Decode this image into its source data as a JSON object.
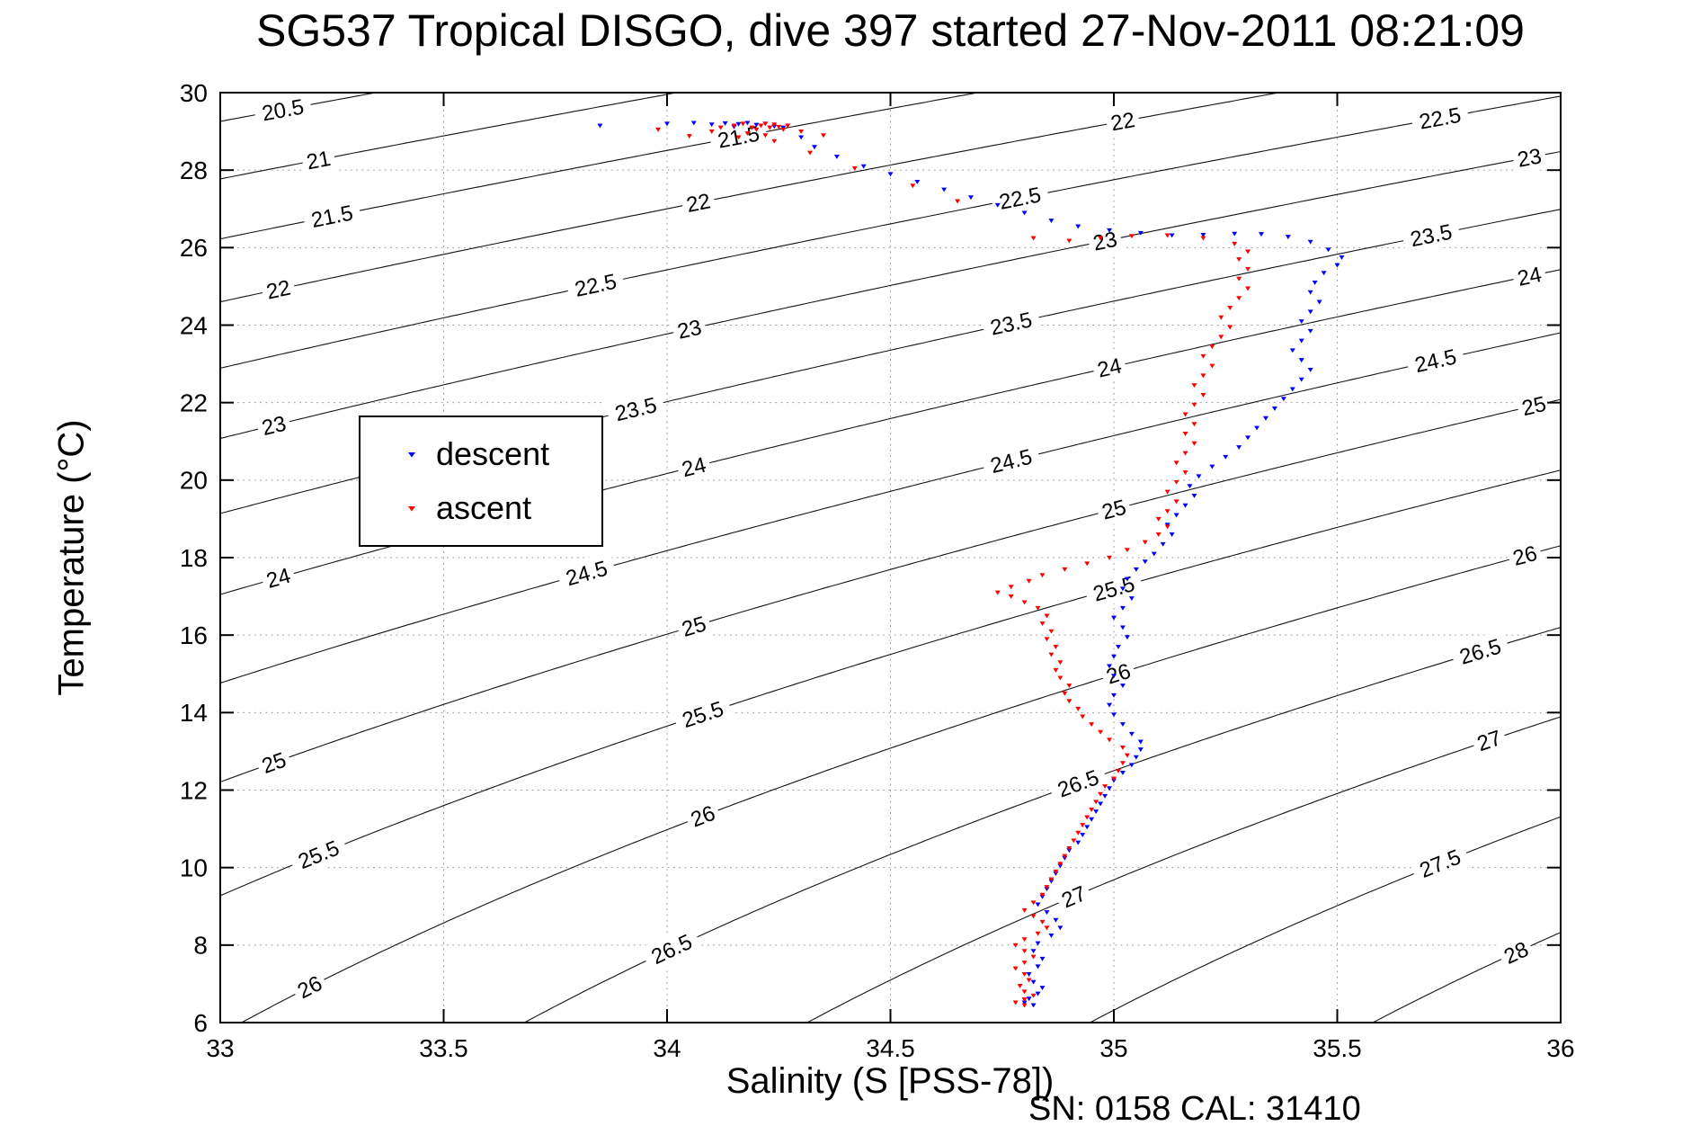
{
  "chart_data": {
    "type": "scatter",
    "title": "SG537 Tropical DISGO, dive 397 started 27-Nov-2011 08:21:09",
    "xlabel": "Salinity (S [PSS-78])",
    "ylabel": "Temperature (°C)",
    "annotation": "SN: 0158  CAL: 31410",
    "xlim": [
      33,
      36
    ],
    "ylim": [
      6,
      30
    ],
    "xtick_values": [
      33,
      33.5,
      34,
      34.5,
      35,
      35.5,
      36
    ],
    "xtick_labels": [
      "33",
      "33.5",
      "34",
      "34.5",
      "35",
      "35.5",
      "36"
    ],
    "ytick_values": [
      6,
      8,
      10,
      12,
      14,
      16,
      18,
      20,
      22,
      24,
      26,
      28,
      30
    ],
    "ytick_labels": [
      "6",
      "8",
      "10",
      "12",
      "14",
      "16",
      "18",
      "20",
      "22",
      "24",
      "26",
      "28",
      "30"
    ],
    "grid": "dotted",
    "grid_color": "#9a9a9a",
    "axis_color": "#000000",
    "legend": {
      "position": "upper-left-inside",
      "items": [
        {
          "label": "descent",
          "color": "#0000ff",
          "marker": "triangle-down"
        },
        {
          "label": "ascent",
          "color": "#ff0000",
          "marker": "triangle-down"
        }
      ]
    },
    "contours": {
      "description": "sigma-t isopycnal contour lines labeled in kg/m3",
      "color": "#151515",
      "label_font_px": 24,
      "sigma_coeffs": {
        "c0": 28.152,
        "cT": -0.0735,
        "cT2": -0.00469,
        "cS": 0.802,
        "cST": -0.002,
        "sRef": 35
      },
      "levels": [
        20.5,
        21,
        21.5,
        22,
        22.5,
        23,
        23.5,
        24,
        24.5,
        25,
        25.5,
        26,
        26.5,
        27,
        27.5,
        28
      ],
      "labels": [
        [
          20.5,
          33.14
        ],
        [
          21,
          33.22
        ],
        [
          21.5,
          33.25
        ],
        [
          21.5,
          34.16
        ],
        [
          22,
          33.13
        ],
        [
          22,
          34.07
        ],
        [
          22,
          35.02
        ],
        [
          22.5,
          33.84
        ],
        [
          22.5,
          34.79
        ],
        [
          22.5,
          35.73
        ],
        [
          23,
          33.12
        ],
        [
          23,
          34.05
        ],
        [
          23,
          34.98
        ],
        [
          23,
          35.93
        ],
        [
          23.5,
          33.93
        ],
        [
          23.5,
          34.77
        ],
        [
          23.5,
          35.71
        ],
        [
          24,
          33.13
        ],
        [
          24,
          34.06
        ],
        [
          24,
          34.99
        ],
        [
          24,
          35.93
        ],
        [
          24.5,
          33.82
        ],
        [
          24.5,
          34.77
        ],
        [
          24.5,
          35.72
        ],
        [
          25,
          33.12
        ],
        [
          25,
          34.06
        ],
        [
          25,
          35.0
        ],
        [
          25,
          35.94
        ],
        [
          25.5,
          33.22
        ],
        [
          25.5,
          34.08
        ],
        [
          25.5,
          35.0
        ],
        [
          26,
          33.2
        ],
        [
          26,
          34.08
        ],
        [
          26,
          35.01
        ],
        [
          26,
          35.92
        ],
        [
          26.5,
          34.01
        ],
        [
          26.5,
          34.92
        ],
        [
          26.5,
          35.82
        ],
        [
          27,
          34.91
        ],
        [
          27,
          35.84
        ],
        [
          27.5,
          35.73
        ],
        [
          28,
          35.9
        ]
      ]
    },
    "series": [
      {
        "name": "descent",
        "color": "#0000ff",
        "marker": "triangle-down",
        "points": [
          [
            33.85,
            29.15
          ],
          [
            34.0,
            29.2
          ],
          [
            34.06,
            29.22
          ],
          [
            34.1,
            29.18
          ],
          [
            34.13,
            29.21
          ],
          [
            34.16,
            29.19
          ],
          [
            34.18,
            29.22
          ],
          [
            34.2,
            29.17
          ],
          [
            34.22,
            29.2
          ],
          [
            34.24,
            29.13
          ],
          [
            34.26,
            29.1
          ],
          [
            34.15,
            29.12
          ],
          [
            34.3,
            28.85
          ],
          [
            34.33,
            28.6
          ],
          [
            34.38,
            28.35
          ],
          [
            34.44,
            28.1
          ],
          [
            34.5,
            27.9
          ],
          [
            34.56,
            27.7
          ],
          [
            34.62,
            27.5
          ],
          [
            34.68,
            27.3
          ],
          [
            34.74,
            27.1
          ],
          [
            34.8,
            26.9
          ],
          [
            34.86,
            26.7
          ],
          [
            34.92,
            26.55
          ],
          [
            34.99,
            26.45
          ],
          [
            35.06,
            26.38
          ],
          [
            35.13,
            26.32
          ],
          [
            35.2,
            26.33
          ],
          [
            35.27,
            26.36
          ],
          [
            35.33,
            26.35
          ],
          [
            35.39,
            26.28
          ],
          [
            35.44,
            26.15
          ],
          [
            35.48,
            25.95
          ],
          [
            35.51,
            25.75
          ],
          [
            35.5,
            25.55
          ],
          [
            35.47,
            25.35
          ],
          [
            35.45,
            25.1
          ],
          [
            35.44,
            24.85
          ],
          [
            35.46,
            24.6
          ],
          [
            35.44,
            24.35
          ],
          [
            35.42,
            24.1
          ],
          [
            35.44,
            23.85
          ],
          [
            35.42,
            23.6
          ],
          [
            35.4,
            23.35
          ],
          [
            35.42,
            23.1
          ],
          [
            35.44,
            22.85
          ],
          [
            35.42,
            22.6
          ],
          [
            35.4,
            22.35
          ],
          [
            35.38,
            22.1
          ],
          [
            35.36,
            21.85
          ],
          [
            35.34,
            21.6
          ],
          [
            35.32,
            21.35
          ],
          [
            35.3,
            21.1
          ],
          [
            35.28,
            20.85
          ],
          [
            35.25,
            20.6
          ],
          [
            35.22,
            20.35
          ],
          [
            35.19,
            20.1
          ],
          [
            35.17,
            19.85
          ],
          [
            35.18,
            19.6
          ],
          [
            35.16,
            19.35
          ],
          [
            35.14,
            19.1
          ],
          [
            35.12,
            18.85
          ],
          [
            35.13,
            18.6
          ],
          [
            35.11,
            18.35
          ],
          [
            35.09,
            18.1
          ],
          [
            35.07,
            17.9
          ],
          [
            35.05,
            17.7
          ],
          [
            35.03,
            17.45
          ],
          [
            35.02,
            17.2
          ],
          [
            35.04,
            16.95
          ],
          [
            35.02,
            16.7
          ],
          [
            35.0,
            16.45
          ],
          [
            35.02,
            16.2
          ],
          [
            35.03,
            15.95
          ],
          [
            35.01,
            15.7
          ],
          [
            35.0,
            15.45
          ],
          [
            34.99,
            15.2
          ],
          [
            35.0,
            14.95
          ],
          [
            35.02,
            14.7
          ],
          [
            35.0,
            14.45
          ],
          [
            34.99,
            14.2
          ],
          [
            35.0,
            13.95
          ],
          [
            35.02,
            13.7
          ],
          [
            35.04,
            13.45
          ],
          [
            35.06,
            13.25
          ],
          [
            35.06,
            13.05
          ],
          [
            35.05,
            12.85
          ],
          [
            35.04,
            12.65
          ],
          [
            35.02,
            12.45
          ],
          [
            35.0,
            12.25
          ],
          [
            34.99,
            12.05
          ],
          [
            34.98,
            11.85
          ],
          [
            34.97,
            11.65
          ],
          [
            34.96,
            11.45
          ],
          [
            34.95,
            11.25
          ],
          [
            34.94,
            11.05
          ],
          [
            34.93,
            10.85
          ],
          [
            34.92,
            10.65
          ],
          [
            34.9,
            10.45
          ],
          [
            34.89,
            10.25
          ],
          [
            34.88,
            10.05
          ],
          [
            34.87,
            9.85
          ],
          [
            34.86,
            9.65
          ],
          [
            34.85,
            9.45
          ],
          [
            34.84,
            9.25
          ],
          [
            34.83,
            9.05
          ],
          [
            34.85,
            8.85
          ],
          [
            34.87,
            8.65
          ],
          [
            34.88,
            8.45
          ],
          [
            34.86,
            8.25
          ],
          [
            34.83,
            8.05
          ],
          [
            34.82,
            7.85
          ],
          [
            34.84,
            7.65
          ],
          [
            34.83,
            7.45
          ],
          [
            34.81,
            7.25
          ],
          [
            34.82,
            7.05
          ],
          [
            34.84,
            6.9
          ],
          [
            34.83,
            6.75
          ],
          [
            34.81,
            6.62
          ],
          [
            34.8,
            6.52
          ],
          [
            34.82,
            6.45
          ]
        ]
      },
      {
        "name": "ascent",
        "color": "#ff0000",
        "marker": "triangle-down",
        "points": [
          [
            34.8,
            6.45
          ],
          [
            34.78,
            6.52
          ],
          [
            34.8,
            6.6
          ],
          [
            34.82,
            6.7
          ],
          [
            34.8,
            6.8
          ],
          [
            34.79,
            6.95
          ],
          [
            34.81,
            7.1
          ],
          [
            34.8,
            7.25
          ],
          [
            34.78,
            7.4
          ],
          [
            34.8,
            7.55
          ],
          [
            34.82,
            7.7
          ],
          [
            34.8,
            7.85
          ],
          [
            34.78,
            8.0
          ],
          [
            34.8,
            8.15
          ],
          [
            34.83,
            8.3
          ],
          [
            34.85,
            8.45
          ],
          [
            34.84,
            8.6
          ],
          [
            34.82,
            8.75
          ],
          [
            34.8,
            8.9
          ],
          [
            34.82,
            9.1
          ],
          [
            34.84,
            9.3
          ],
          [
            34.85,
            9.5
          ],
          [
            34.86,
            9.7
          ],
          [
            34.87,
            9.9
          ],
          [
            34.88,
            10.1
          ],
          [
            34.89,
            10.3
          ],
          [
            34.9,
            10.5
          ],
          [
            34.91,
            10.7
          ],
          [
            34.92,
            10.9
          ],
          [
            34.93,
            11.1
          ],
          [
            34.94,
            11.3
          ],
          [
            34.95,
            11.5
          ],
          [
            34.96,
            11.7
          ],
          [
            34.97,
            11.9
          ],
          [
            34.98,
            12.1
          ],
          [
            35.0,
            12.3
          ],
          [
            35.01,
            12.5
          ],
          [
            35.02,
            12.7
          ],
          [
            35.03,
            12.9
          ],
          [
            35.02,
            13.1
          ],
          [
            34.99,
            13.3
          ],
          [
            34.97,
            13.5
          ],
          [
            34.95,
            13.7
          ],
          [
            34.93,
            13.9
          ],
          [
            34.92,
            14.1
          ],
          [
            34.9,
            14.3
          ],
          [
            34.89,
            14.5
          ],
          [
            34.9,
            14.7
          ],
          [
            34.88,
            14.9
          ],
          [
            34.87,
            15.1
          ],
          [
            34.88,
            15.3
          ],
          [
            34.86,
            15.5
          ],
          [
            34.87,
            15.7
          ],
          [
            34.85,
            15.9
          ],
          [
            34.86,
            16.1
          ],
          [
            34.84,
            16.3
          ],
          [
            34.85,
            16.5
          ],
          [
            34.83,
            16.7
          ],
          [
            34.8,
            16.85
          ],
          [
            34.77,
            17.0
          ],
          [
            34.74,
            17.1
          ],
          [
            34.77,
            17.25
          ],
          [
            34.81,
            17.4
          ],
          [
            34.84,
            17.55
          ],
          [
            34.89,
            17.7
          ],
          [
            34.94,
            17.85
          ],
          [
            34.99,
            18.0
          ],
          [
            35.03,
            18.2
          ],
          [
            35.07,
            18.4
          ],
          [
            35.1,
            18.6
          ],
          [
            35.12,
            18.8
          ],
          [
            35.1,
            19.0
          ],
          [
            35.12,
            19.2
          ],
          [
            35.14,
            19.45
          ],
          [
            35.12,
            19.7
          ],
          [
            35.14,
            19.95
          ],
          [
            35.16,
            20.2
          ],
          [
            35.14,
            20.45
          ],
          [
            35.16,
            20.7
          ],
          [
            35.18,
            20.95
          ],
          [
            35.16,
            21.2
          ],
          [
            35.18,
            21.45
          ],
          [
            35.16,
            21.7
          ],
          [
            35.18,
            21.95
          ],
          [
            35.2,
            22.2
          ],
          [
            35.18,
            22.45
          ],
          [
            35.2,
            22.7
          ],
          [
            35.22,
            22.95
          ],
          [
            35.2,
            23.2
          ],
          [
            35.22,
            23.45
          ],
          [
            35.24,
            23.7
          ],
          [
            35.26,
            23.95
          ],
          [
            35.24,
            24.2
          ],
          [
            35.26,
            24.45
          ],
          [
            35.28,
            24.7
          ],
          [
            35.3,
            24.95
          ],
          [
            35.28,
            25.2
          ],
          [
            35.3,
            25.45
          ],
          [
            35.28,
            25.7
          ],
          [
            35.3,
            25.9
          ],
          [
            35.27,
            26.1
          ],
          [
            35.2,
            26.25
          ],
          [
            35.12,
            26.32
          ],
          [
            35.04,
            26.3
          ],
          [
            34.97,
            26.25
          ],
          [
            34.9,
            26.18
          ],
          [
            34.82,
            26.25
          ],
          [
            34.65,
            27.2
          ],
          [
            34.55,
            27.6
          ],
          [
            34.42,
            28.05
          ],
          [
            34.32,
            28.45
          ],
          [
            34.24,
            28.75
          ],
          [
            34.1,
            29.0
          ],
          [
            34.12,
            29.1
          ],
          [
            34.15,
            29.15
          ],
          [
            34.17,
            29.2
          ],
          [
            34.19,
            29.1
          ],
          [
            34.2,
            29.05
          ],
          [
            34.21,
            29.15
          ],
          [
            34.22,
            29.2
          ],
          [
            34.23,
            29.1
          ],
          [
            34.24,
            29.18
          ],
          [
            34.25,
            29.12
          ],
          [
            34.26,
            29.05
          ],
          [
            34.27,
            29.15
          ],
          [
            34.18,
            28.95
          ],
          [
            34.16,
            28.85
          ],
          [
            34.22,
            28.9
          ],
          [
            34.05,
            28.88
          ],
          [
            33.98,
            29.05
          ],
          [
            34.3,
            29.0
          ],
          [
            34.35,
            28.9
          ]
        ]
      }
    ]
  }
}
